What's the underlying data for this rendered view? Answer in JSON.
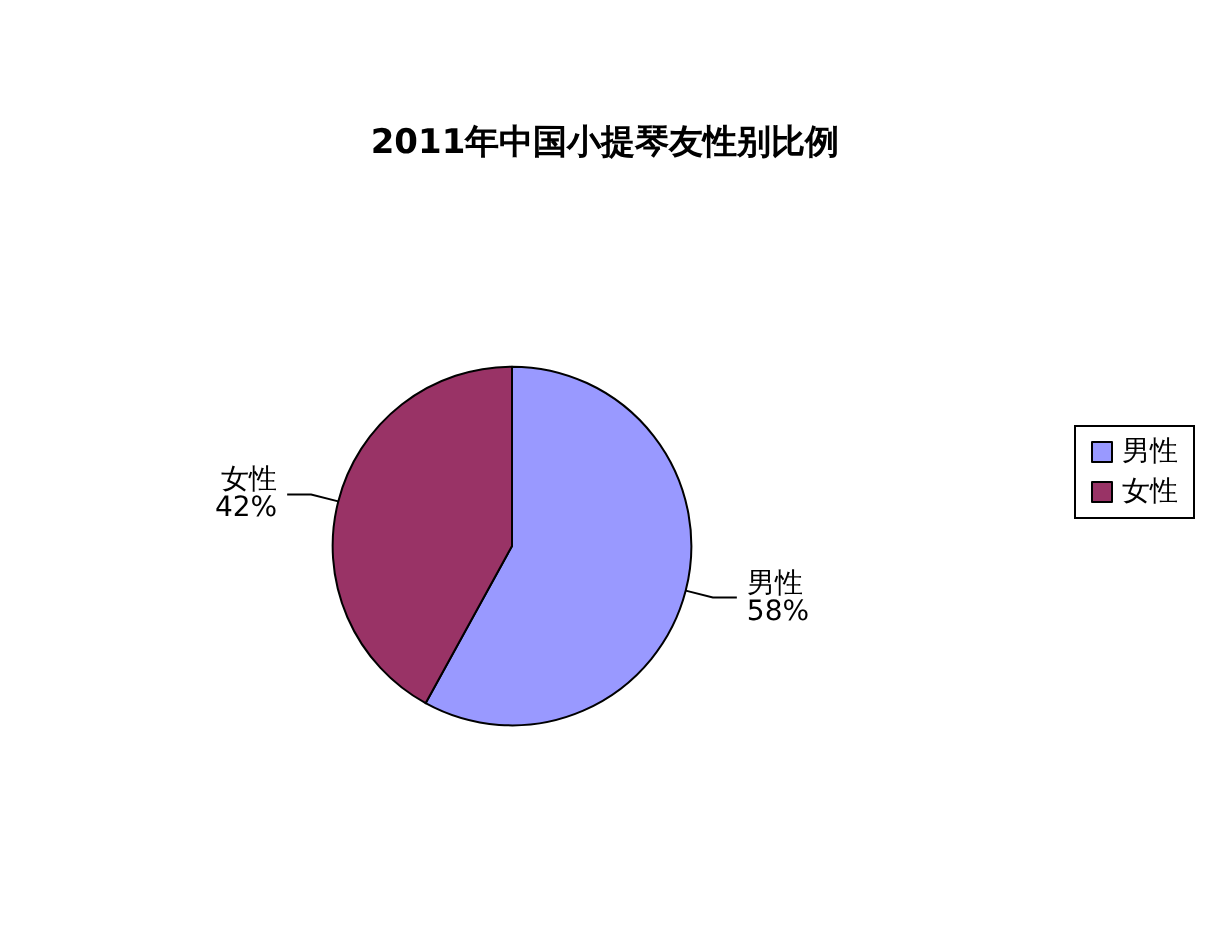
{
  "chart_data": {
    "type": "pie",
    "title": "2011年中国小提琴友性别比例",
    "categories": [
      "男性",
      "女性"
    ],
    "values": [
      58,
      42
    ],
    "colors": [
      "#9999ff",
      "#993366"
    ],
    "value_labels": [
      "58%",
      "42%"
    ],
    "legend": "right"
  }
}
